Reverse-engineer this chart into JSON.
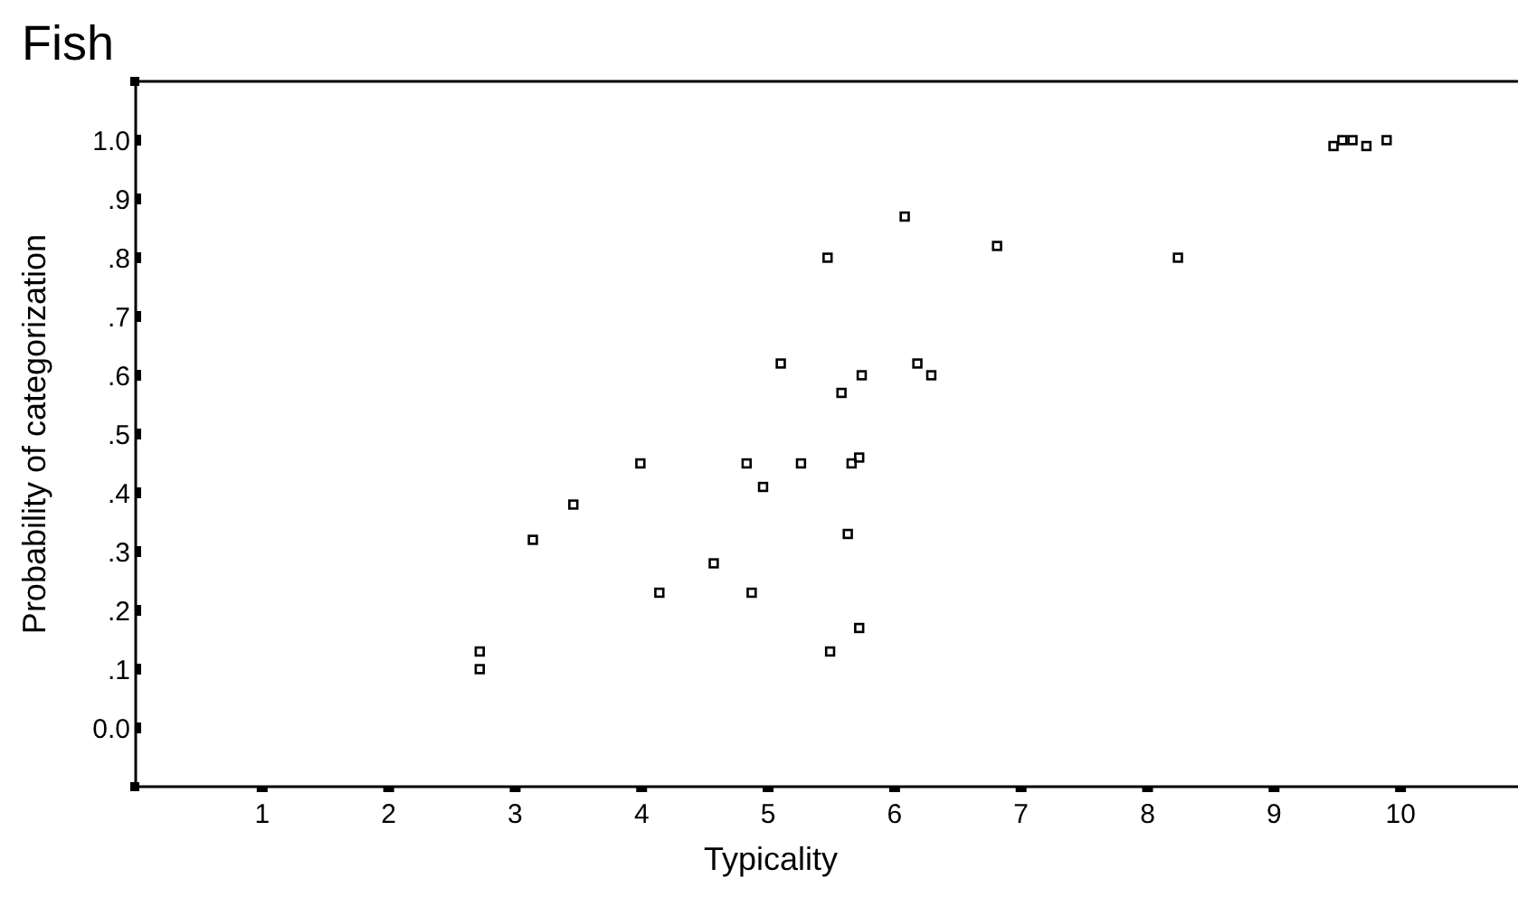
{
  "chart_data": {
    "type": "scatter",
    "title": "Fish",
    "xlabel": "Typicality",
    "ylabel": "Probability of categorization",
    "x": [
      2.72,
      2.72,
      3.14,
      3.46,
      3.99,
      4.14,
      4.57,
      4.83,
      4.87,
      4.96,
      5.1,
      5.26,
      5.47,
      5.49,
      5.58,
      5.63,
      5.66,
      5.72,
      5.72,
      5.74,
      6.08,
      6.18,
      6.29,
      6.81,
      8.24,
      9.47,
      9.54,
      9.62,
      9.73,
      9.89
    ],
    "values": [
      0.13,
      0.1,
      0.32,
      0.38,
      0.45,
      0.23,
      0.28,
      0.45,
      0.23,
      0.41,
      0.62,
      0.45,
      0.8,
      0.13,
      0.57,
      0.33,
      0.45,
      0.46,
      0.17,
      0.6,
      0.87,
      0.62,
      0.6,
      0.82,
      0.8,
      0.99,
      1.0,
      1.0,
      0.99,
      1.0
    ],
    "color": "#000000",
    "marker": "square",
    "grid": false,
    "xlim": [
      0,
      10.9
    ],
    "ylim": [
      -0.1,
      1.1
    ],
    "xticks": [
      1,
      2,
      3,
      4,
      5,
      6,
      7,
      8,
      9,
      10
    ],
    "yticks": [
      {
        "value": 0,
        "label": "0.0"
      },
      {
        "value": 0.1,
        "label": ".1"
      },
      {
        "value": 0.2,
        "label": ".2"
      },
      {
        "value": 0.3,
        "label": ".3"
      },
      {
        "value": 0.4,
        "label": ".4"
      },
      {
        "value": 0.5,
        "label": ".5"
      },
      {
        "value": 0.6,
        "label": ".6"
      },
      {
        "value": 0.7,
        "label": ".7"
      },
      {
        "value": 0.8,
        "label": ".8"
      },
      {
        "value": 0.9,
        "label": ".9"
      },
      {
        "value": 1,
        "label": "1.0"
      }
    ]
  }
}
